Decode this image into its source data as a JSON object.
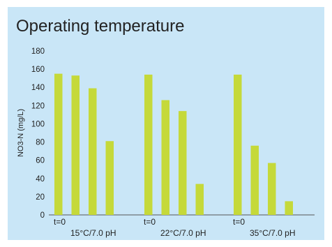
{
  "chart_data": {
    "type": "bar",
    "title": "Operating temperature",
    "ylabel": "NO3-N (mg/L)",
    "xlabel": "",
    "ylim": [
      0,
      180
    ],
    "yticks": [
      0,
      20,
      40,
      60,
      80,
      100,
      120,
      140,
      160,
      180
    ],
    "grid": false,
    "legend": "none",
    "bar_color": "#c5d93a",
    "background_color": "#c9e6f7",
    "groups": [
      {
        "start_label": "t=0",
        "label": "15°C/7.0 pH",
        "values": [
          155,
          153,
          139,
          81
        ]
      },
      {
        "start_label": "t=0",
        "label": "22°C/7.0 pH",
        "values": [
          154,
          126,
          114,
          34
        ]
      },
      {
        "start_label": "t=0",
        "label": "35°C/7.0 pH",
        "values": [
          154,
          76,
          57,
          15
        ]
      }
    ]
  }
}
